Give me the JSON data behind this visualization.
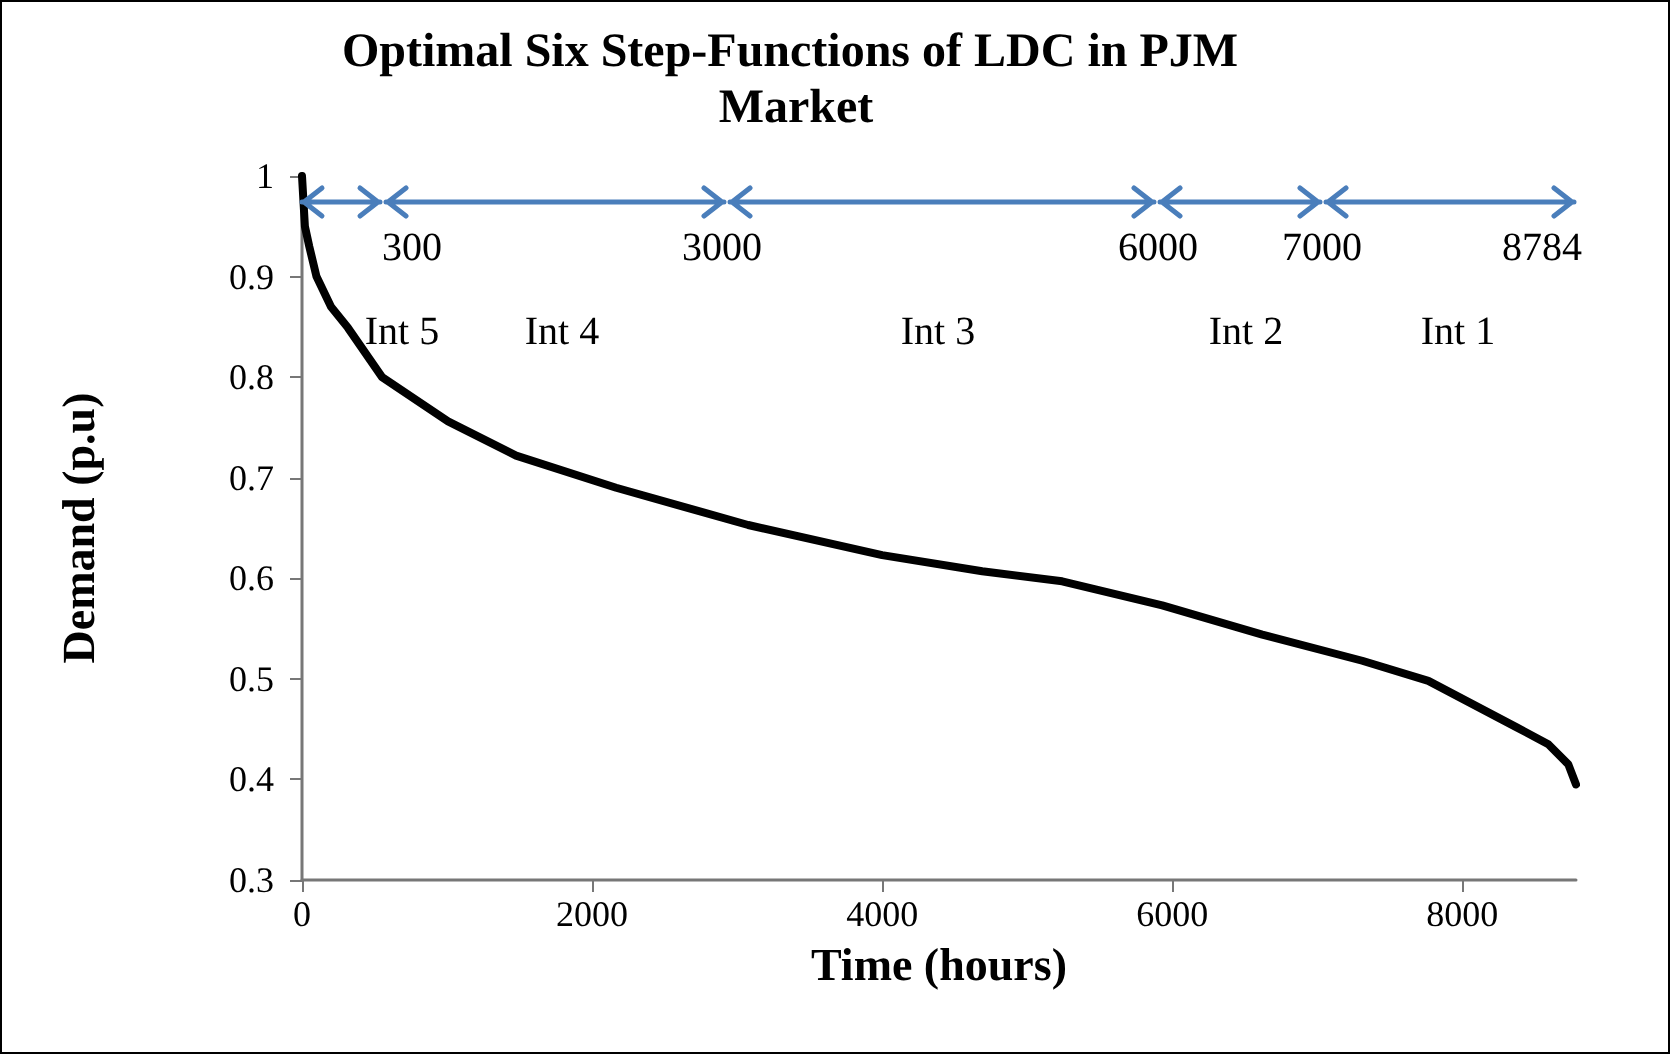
{
  "chart_data": {
    "type": "line",
    "title": "Optimal Six Step-Functions of LDC in PJM Market",
    "xlabel": "Time (hours)",
    "ylabel": "Demand (p.u)",
    "xlim": [
      0,
      8784
    ],
    "xticks": [
      0,
      2000,
      4000,
      6000,
      8000
    ],
    "ylim": [
      0.3,
      1
    ],
    "yticks": [
      0.3,
      0.4,
      0.5,
      0.6,
      0.7,
      0.8,
      0.9,
      1
    ],
    "grid": false,
    "marker": "none",
    "series": [
      {
        "color": "#000000",
        "x": [
          0,
          20,
          50,
          100,
          200,
          317,
          552,
          1007,
          1476,
          2166,
          3076,
          4000,
          4690,
          5241,
          5931,
          6621,
          7310,
          7766,
          8372,
          8593,
          8731,
          8784
        ],
        "values": [
          1.0,
          0.95,
          0.93,
          0.9,
          0.87,
          0.849,
          0.8,
          0.756,
          0.722,
          0.69,
          0.653,
          0.623,
          0.607,
          0.597,
          0.573,
          0.544,
          0.518,
          0.498,
          0.452,
          0.435,
          0.415,
          0.395
        ]
      }
    ],
    "annotations": [
      "300",
      "3000",
      "6000",
      "7000",
      "8784",
      "Int 5",
      "Int 4",
      "Int 3",
      "Int 2",
      "Int 1"
    ]
  }
}
